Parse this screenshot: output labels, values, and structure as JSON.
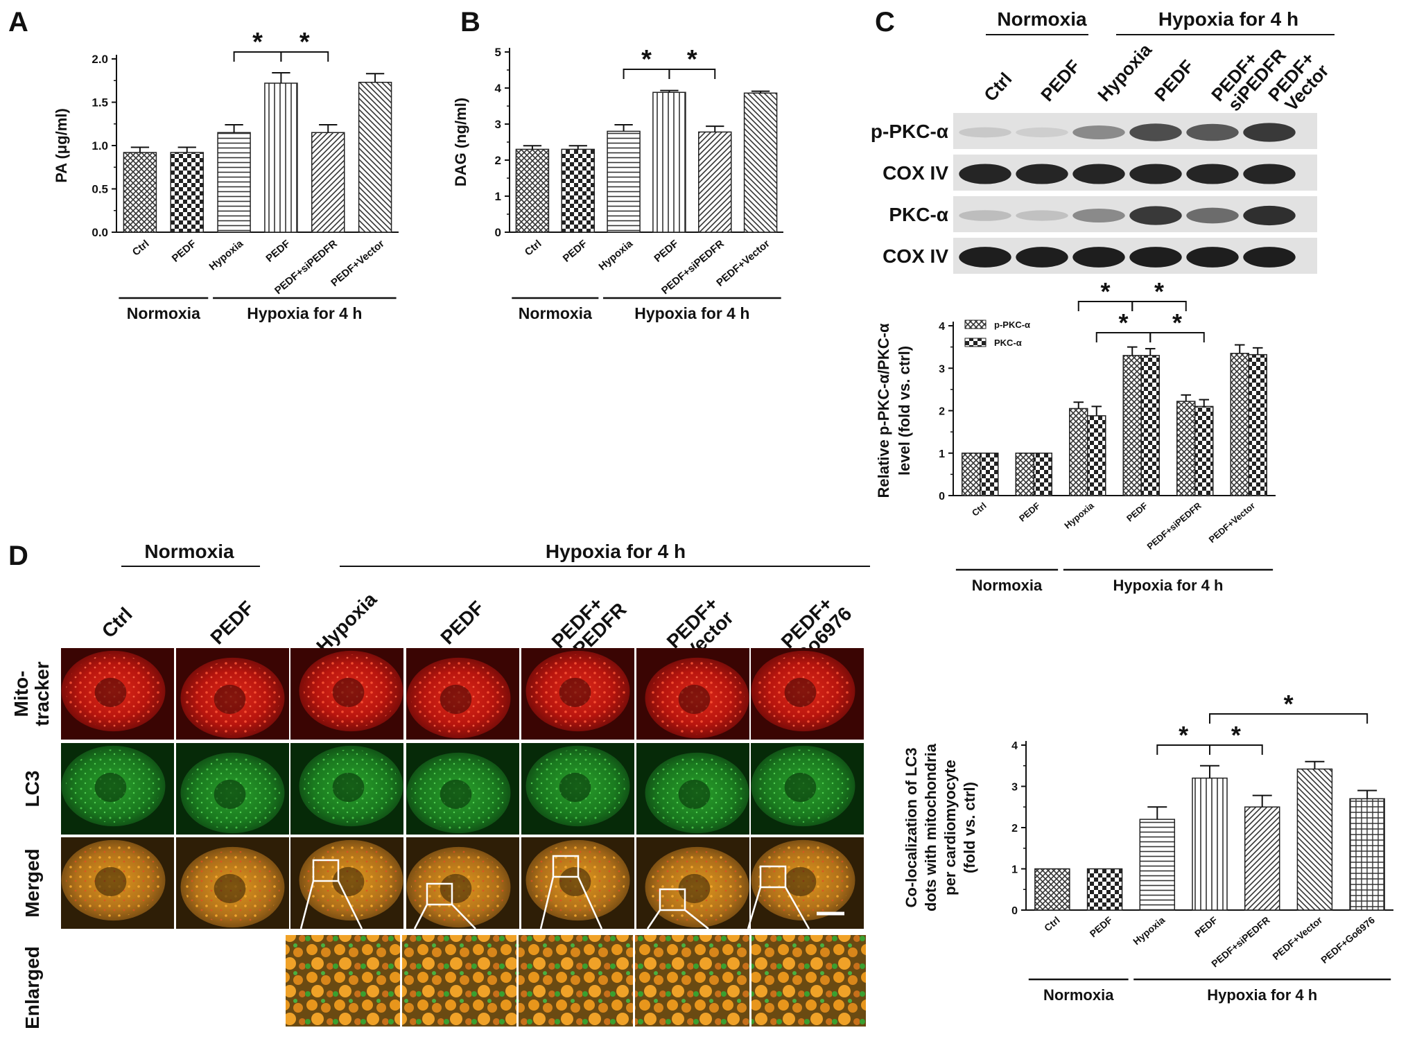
{
  "colors": {
    "bar_fill": "#ffffff",
    "bar_stroke": "#222222",
    "hatch": "#333333",
    "red": "#d21a12",
    "green": "#1e8a22",
    "orange": "#d8861a"
  },
  "chart_data": [
    {
      "panel": "A",
      "type": "bar",
      "categories": [
        "Ctrl",
        "PEDF",
        "Hypoxia",
        "PEDF",
        "PEDF+siPEDFR",
        "PEDF+Vector"
      ],
      "values": [
        0.92,
        0.92,
        1.15,
        1.72,
        1.15,
        1.73
      ],
      "errors": [
        0.06,
        0.06,
        0.09,
        0.12,
        0.09,
        0.1
      ],
      "ylabel": "PA (μg/ml)",
      "ylim": [
        0,
        2.0
      ],
      "yticks": [
        "0.0",
        "0.5",
        "1.0",
        "1.5",
        "2.0"
      ],
      "patterns": [
        "diag-cross",
        "check",
        "hlines",
        "vlines",
        "diag-right",
        "diag-left"
      ],
      "groups": [
        {
          "label": "Normoxia",
          "from": 0,
          "to": 1
        },
        {
          "label": "Hypoxia for 4 h",
          "from": 2,
          "to": 5
        }
      ],
      "significance": [
        {
          "from": 2,
          "to": 3,
          "label": "*"
        },
        {
          "from": 3,
          "to": 4,
          "label": "*"
        }
      ]
    },
    {
      "panel": "B",
      "type": "bar",
      "categories": [
        "Ctrl",
        "PEDF",
        "Hypoxia",
        "PEDF",
        "PEDF+siPEDFR",
        "PEDF+Vector"
      ],
      "values": [
        2.3,
        2.3,
        2.8,
        3.88,
        2.78,
        3.86
      ],
      "errors": [
        0.1,
        0.1,
        0.18,
        0.05,
        0.16,
        0.05
      ],
      "ylabel": "DAG (ng/ml)",
      "ylim": [
        0,
        5
      ],
      "yticks": [
        "0",
        "1",
        "2",
        "3",
        "4",
        "5"
      ],
      "patterns": [
        "diag-cross",
        "check",
        "hlines",
        "vlines",
        "diag-right",
        "diag-left"
      ],
      "groups": [
        {
          "label": "Normoxia",
          "from": 0,
          "to": 1
        },
        {
          "label": "Hypoxia for 4 h",
          "from": 2,
          "to": 5
        }
      ],
      "significance": [
        {
          "from": 2,
          "to": 3,
          "label": "*"
        },
        {
          "from": 3,
          "to": 4,
          "label": "*"
        }
      ]
    },
    {
      "panel": "C",
      "type": "bar",
      "categories": [
        "Ctrl",
        "PEDF",
        "Hypoxia",
        "PEDF",
        "PEDF+siPEDFR",
        "PEDF+Vector"
      ],
      "series": [
        {
          "name": "p-PKC-α",
          "values": [
            1.0,
            1.0,
            2.05,
            3.3,
            2.22,
            3.35
          ],
          "errors": [
            0,
            0,
            0.15,
            0.2,
            0.15,
            0.2
          ],
          "pattern": "diag-cross"
        },
        {
          "name": "PKC-α",
          "values": [
            1.0,
            1.0,
            1.88,
            3.3,
            2.1,
            3.32
          ],
          "errors": [
            0,
            0,
            0.22,
            0.16,
            0.16,
            0.16
          ],
          "pattern": "check"
        }
      ],
      "ylabel": [
        "Relative p-PKC-α/PKC-α",
        "level (fold vs. ctrl)"
      ],
      "ylim": [
        0,
        4
      ],
      "yticks": [
        "0",
        "1",
        "2",
        "3",
        "4"
      ],
      "legend": "top-left",
      "groups": [
        {
          "label": "Normoxia",
          "from": 0,
          "to": 1
        },
        {
          "label": "Hypoxia for 4 h",
          "from": 2,
          "to": 5
        }
      ],
      "significance": [
        {
          "from": 2,
          "to": 3,
          "label": "*",
          "series": 0
        },
        {
          "from": 3,
          "to": 4,
          "label": "*",
          "series": 0
        },
        {
          "from": 2,
          "to": 3,
          "label": "*",
          "series": 1
        },
        {
          "from": 3,
          "to": 4,
          "label": "*",
          "series": 1
        }
      ]
    },
    {
      "panel": "D",
      "type": "bar",
      "categories": [
        "Ctrl",
        "PEDF",
        "Hypoxia",
        "PEDF",
        "PEDF+siPEDFR",
        "PEDF+Vector",
        "PEDF+Go6976"
      ],
      "values": [
        1.0,
        1.0,
        2.2,
        3.2,
        2.5,
        3.42,
        2.7
      ],
      "errors": [
        0,
        0,
        0.3,
        0.3,
        0.28,
        0.18,
        0.2
      ],
      "ylabel": [
        "Co-localization of LC3",
        "dots with mitochondria",
        "per cardiomyocyte",
        "(fold vs. ctrl)"
      ],
      "ylim": [
        0,
        4
      ],
      "yticks": [
        "0",
        "1",
        "2",
        "3",
        "4"
      ],
      "patterns": [
        "diag-cross",
        "check",
        "hlines",
        "vlines",
        "diag-right",
        "diag-left",
        "grid"
      ],
      "groups": [
        {
          "label": "Normoxia",
          "from": 0,
          "to": 1
        },
        {
          "label": "Hypoxia for 4 h",
          "from": 2,
          "to": 6
        }
      ],
      "significance": [
        {
          "from": 2,
          "to": 3,
          "label": "*"
        },
        {
          "from": 3,
          "to": 4,
          "label": "*"
        },
        {
          "from": 3,
          "to": 6,
          "label": "*"
        }
      ]
    }
  ],
  "panel_letters": {
    "a": "A",
    "b": "B",
    "c": "C",
    "d": "D"
  },
  "western_blot": {
    "normoxia": "Normoxia",
    "hypoxia": "Hypoxia for 4 h",
    "lanes": [
      "Ctrl",
      "PEDF",
      "Hypoxia",
      "PEDF",
      "PEDF+",
      "PEDF+"
    ],
    "lane_second_lines": [
      "",
      "",
      "",
      "",
      "siPEDFR",
      "Vector"
    ],
    "rows": [
      "p-PKC-α",
      "COX IV",
      "PKC-α",
      "COX IV"
    ],
    "band_intensity": [
      [
        0.15,
        0.12,
        0.45,
        0.75,
        0.7,
        0.85
      ],
      [
        0.95,
        0.95,
        0.95,
        0.95,
        0.95,
        0.95
      ],
      [
        0.2,
        0.18,
        0.45,
        0.85,
        0.6,
        0.9
      ],
      [
        0.98,
        0.98,
        0.98,
        0.98,
        0.98,
        0.98
      ]
    ]
  },
  "micrographs": {
    "normoxia": "Normoxia",
    "hypoxia": "Hypoxia for 4 h",
    "columns": [
      "Ctrl",
      "PEDF",
      "Hypoxia",
      "PEDF",
      "PEDF+",
      "PEDF+",
      "PEDF+"
    ],
    "column_second_lines": [
      "",
      "",
      "",
      "",
      "siPEDFR",
      "Vector",
      "Go6976"
    ],
    "rows": [
      "Mito-",
      "LC3",
      "Merged",
      "Enlarged"
    ],
    "row_second_lines": [
      "tracker",
      "",
      "",
      ""
    ]
  }
}
